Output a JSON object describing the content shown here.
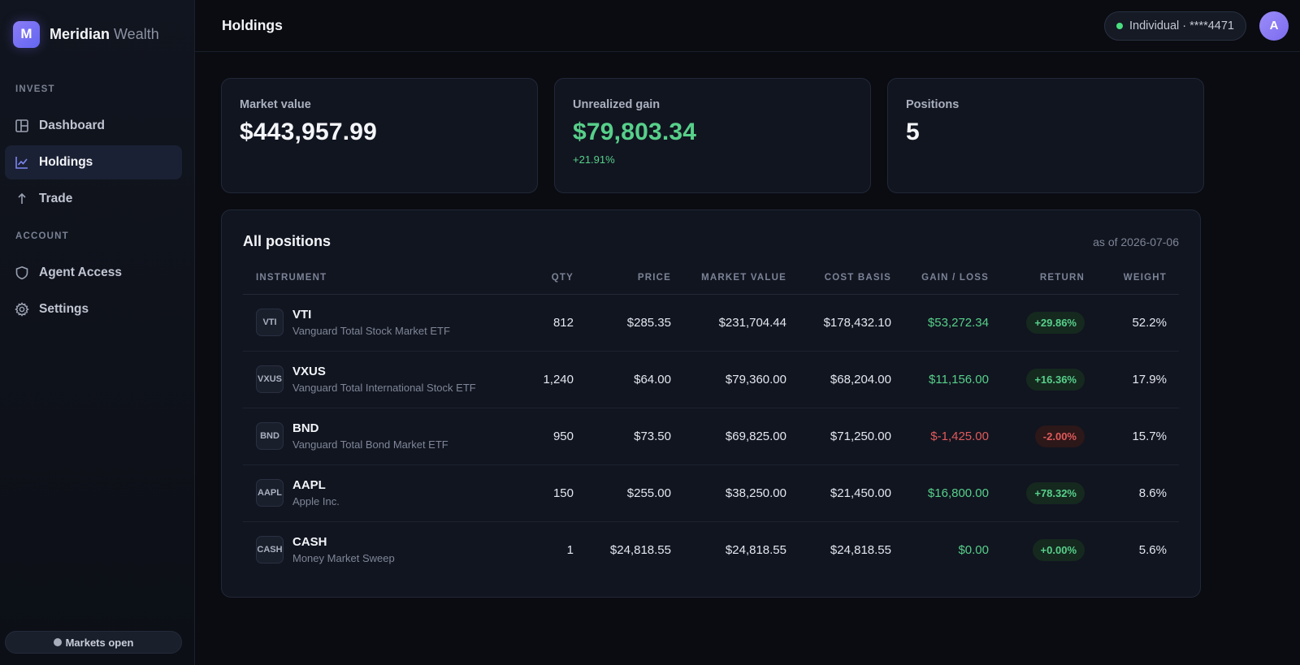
{
  "brand": {
    "logo_letter": "M",
    "name": "Meridian",
    "sub": "Wealth",
    "accent": "#6366f1"
  },
  "sidebar": {
    "sections": [
      {
        "title": "INVEST",
        "items": [
          {
            "label": "Dashboard",
            "icon": "dashboard-icon",
            "active": false
          },
          {
            "label": "Holdings",
            "icon": "chart-line-icon",
            "active": true
          },
          {
            "label": "Trade",
            "icon": "arrow-up-icon",
            "active": false
          }
        ]
      },
      {
        "title": "ACCOUNT",
        "items": [
          {
            "label": "Agent Access",
            "icon": "shield-icon",
            "active": false
          },
          {
            "label": "Settings",
            "icon": "gear-icon",
            "active": false
          }
        ]
      }
    ],
    "market_status": "Markets open"
  },
  "header": {
    "title": "Holdings",
    "account_label": "Individual · ****4471",
    "account_status_color": "#4ade80",
    "avatar_letter": "A"
  },
  "summary": {
    "market_value": {
      "label": "Market value",
      "value": "$443,957.99"
    },
    "unrealized_gain": {
      "label": "Unrealized gain",
      "value": "$79,803.34",
      "delta": "+21.91%"
    },
    "positions": {
      "label": "Positions",
      "value": "5"
    }
  },
  "positions": {
    "title": "All positions",
    "as_of": "as of 2026-07-06",
    "columns": [
      "INSTRUMENT",
      "QTY",
      "PRICE",
      "MARKET VALUE",
      "COST BASIS",
      "GAIN / LOSS",
      "RETURN",
      "WEIGHT"
    ],
    "rows": [
      {
        "badge": "VTI",
        "symbol": "VTI",
        "name": "Vanguard Total Stock Market ETF",
        "qty": "812",
        "price": "$285.35",
        "market_value": "$231,704.44",
        "cost_basis": "$178,432.10",
        "gain": "$53,272.34",
        "return": "+29.86%",
        "weight": "52.2%",
        "direction": "pos"
      },
      {
        "badge": "VXUS",
        "symbol": "VXUS",
        "name": "Vanguard Total International Stock ETF",
        "qty": "1,240",
        "price": "$64.00",
        "market_value": "$79,360.00",
        "cost_basis": "$68,204.00",
        "gain": "$11,156.00",
        "return": "+16.36%",
        "weight": "17.9%",
        "direction": "pos"
      },
      {
        "badge": "BND",
        "symbol": "BND",
        "name": "Vanguard Total Bond Market ETF",
        "qty": "950",
        "price": "$73.50",
        "market_value": "$69,825.00",
        "cost_basis": "$71,250.00",
        "gain": "$-1,425.00",
        "return": "-2.00%",
        "weight": "15.7%",
        "direction": "neg"
      },
      {
        "badge": "AAPL",
        "symbol": "AAPL",
        "name": "Apple Inc.",
        "qty": "150",
        "price": "$255.00",
        "market_value": "$38,250.00",
        "cost_basis": "$21,450.00",
        "gain": "$16,800.00",
        "return": "+78.32%",
        "weight": "8.6%",
        "direction": "pos"
      },
      {
        "badge": "CASH",
        "symbol": "CASH",
        "name": "Money Market Sweep",
        "qty": "1",
        "price": "$24,818.55",
        "market_value": "$24,818.55",
        "cost_basis": "$24,818.55",
        "gain": "$0.00",
        "return": "+0.00%",
        "weight": "5.6%",
        "direction": "pos"
      }
    ]
  },
  "colors": {
    "positive": "#57d08a",
    "negative": "#e05a5a",
    "background": "#0a0c11",
    "card": "#111520"
  }
}
